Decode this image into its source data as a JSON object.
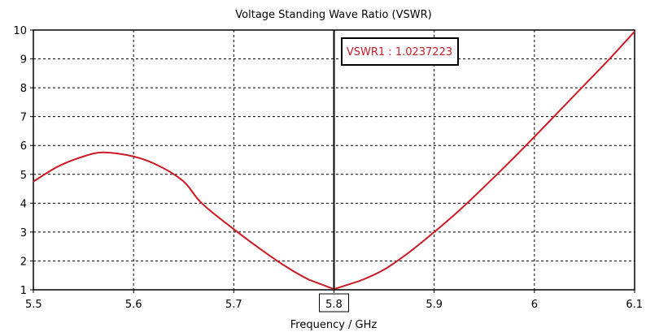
{
  "chart_data": {
    "type": "line",
    "title": "Voltage Standing Wave Ratio (VSWR)",
    "xlabel": "Frequency / GHz",
    "ylabel": "",
    "xlim": [
      5.5,
      6.1
    ],
    "ylim": [
      1,
      10
    ],
    "xticks": [
      "5.5",
      "5.6",
      "5.7",
      "5.8",
      "5.9",
      "6",
      "6.1"
    ],
    "yticks": [
      "1",
      "2",
      "3",
      "4",
      "5",
      "6",
      "7",
      "8",
      "9",
      "10"
    ],
    "grid": true,
    "series": [
      {
        "name": "VSWR1",
        "color": "#cc1b24",
        "x": [
          5.5,
          5.525,
          5.55,
          5.57,
          5.6,
          5.625,
          5.65,
          5.668,
          5.7,
          5.725,
          5.75,
          5.775,
          5.8,
          5.825,
          5.85,
          5.875,
          5.9,
          5.925,
          5.95,
          5.975,
          6.0,
          6.025,
          6.05,
          6.075,
          6.1
        ],
        "y": [
          4.75,
          5.28,
          5.62,
          5.76,
          5.62,
          5.3,
          4.75,
          4.0,
          3.1,
          2.45,
          1.85,
          1.35,
          1.024,
          1.3,
          1.7,
          2.3,
          3.0,
          3.75,
          4.57,
          5.42,
          6.3,
          7.2,
          8.1,
          9.0,
          9.95
        ]
      }
    ],
    "marker": {
      "x": 5.8,
      "x_label": "5.8",
      "label": "VSWR1 : 1.0237223",
      "value": 1.0237223
    }
  }
}
